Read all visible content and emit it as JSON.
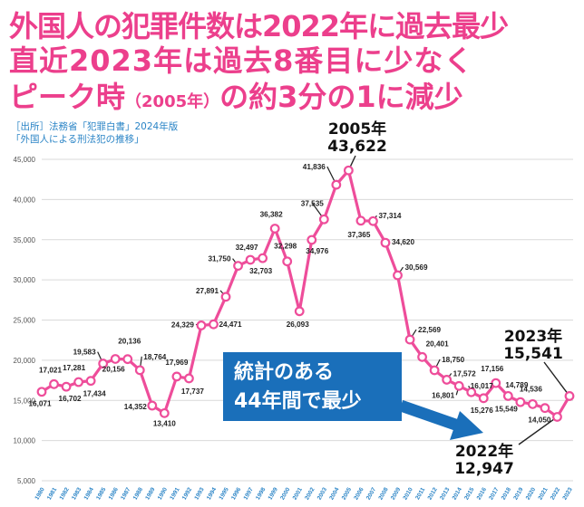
{
  "headline": {
    "line1": "外国人の犯罪件数は2022年に過去最少",
    "line2": "直近2023年は過去8番目に少なく",
    "line3_a": "ピーク時",
    "line3_b": "（2005年）",
    "line3_c": "の約3分の1に減少"
  },
  "source": {
    "line1": "［出所］法務省「犯罪白書」2024年版",
    "line2": "「外国人による刑法犯の推移」"
  },
  "callout": {
    "line1": "統計のある",
    "line2": "44年間で最少"
  },
  "colors": {
    "headline": "#ec3f8c",
    "line": "#ee4d9a",
    "marker_fill": "#ffffff",
    "callout_bg": "#1a6fba",
    "source": "#2a84c6",
    "arrow": "#1a6fba"
  },
  "chart_data": {
    "type": "line",
    "title": "",
    "xlabel": "",
    "ylabel": "",
    "ylim": [
      5000,
      45000
    ],
    "yticks": [
      "5,000",
      "10,000",
      "15,000",
      "20,000",
      "25,000",
      "30,000",
      "35,000",
      "40,000",
      "45,000"
    ],
    "ytick_values": [
      5000,
      10000,
      15000,
      20000,
      25000,
      30000,
      35000,
      40000,
      45000
    ],
    "grid": "horizontal",
    "x": [
      "1980",
      "1981",
      "1982",
      "1983",
      "1984",
      "1985",
      "1986",
      "1987",
      "1988",
      "1989",
      "1990",
      "1991",
      "1992",
      "1993",
      "1994",
      "1995",
      "1996",
      "1997",
      "1998",
      "1999",
      "2000",
      "2001",
      "2002",
      "2003",
      "2004",
      "2005",
      "2006",
      "2007",
      "2008",
      "2009",
      "2010",
      "2011",
      "2012",
      "2013",
      "2014",
      "2015",
      "2016",
      "2017",
      "2018",
      "2019",
      "2020",
      "2021",
      "2022",
      "2023"
    ],
    "values": [
      16071,
      17021,
      16702,
      17281,
      17434,
      19583,
      20156,
      20136,
      18764,
      14352,
      13410,
      17969,
      17737,
      24329,
      24471,
      27891,
      31750,
      32497,
      32703,
      36382,
      32298,
      26093,
      34976,
      37535,
      41836,
      43622,
      37365,
      37314,
      34620,
      30569,
      22569,
      20401,
      18750,
      17572,
      16801,
      16017,
      15276,
      17156,
      15549,
      14789,
      14536,
      14050,
      12947,
      15541
    ],
    "labels": [
      "16,071",
      "17,021",
      "16,702",
      "17,281",
      "17,434",
      "19,583",
      "20,156",
      "20,136",
      "18,764",
      "14,352",
      "13,410",
      "17,969",
      "17,737",
      "24,329",
      "24,471",
      "27,891",
      "31,750",
      "32,497",
      "32,703",
      "36,382",
      "32,298",
      "26,093",
      "34,976",
      "37,535",
      "41,836",
      "",
      "37,365",
      "37,314",
      "34,620",
      "30,569",
      "22,569",
      "20,401",
      "18,750",
      "17,572",
      "16,801",
      "16,017",
      "15,276",
      "17,156",
      "15,549",
      "14,789",
      "14,536",
      "14,050",
      "",
      ""
    ],
    "annotations": [
      {
        "line1": "2005年",
        "line2": "43,622"
      },
      {
        "line1": "2023年",
        "line2": "15,541"
      },
      {
        "line1": "2022年",
        "line2": "12,947"
      }
    ]
  }
}
